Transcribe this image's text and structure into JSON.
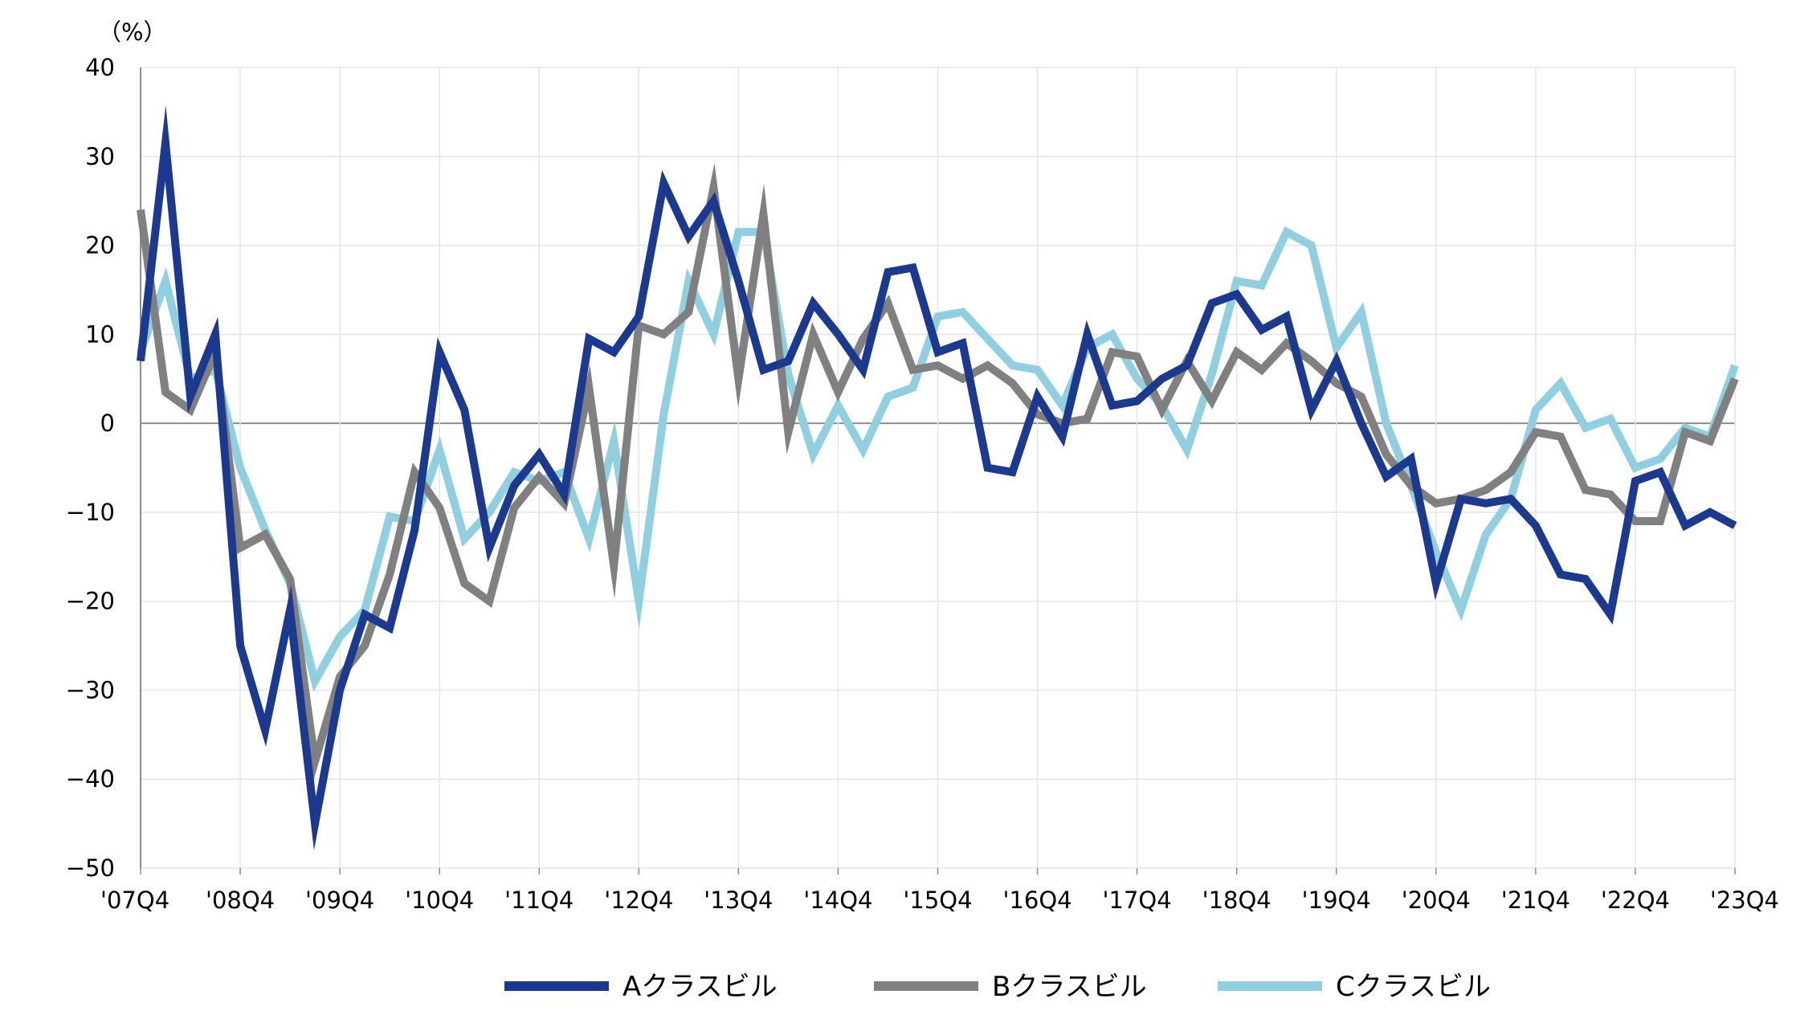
{
  "chart_data": {
    "type": "line",
    "unit_label": "（%）",
    "ylim": [
      -50,
      40
    ],
    "yticks": [
      40,
      30,
      20,
      10,
      0,
      -10,
      -20,
      -30,
      -40,
      -50
    ],
    "xticks": [
      "'07Q4",
      "'08Q4",
      "'09Q4",
      "'10Q4",
      "'11Q4",
      "'12Q4",
      "'13Q4",
      "'14Q4",
      "'15Q4",
      "'16Q4",
      "'17Q4",
      "'18Q4",
      "'19Q4",
      "'20Q4",
      "'21Q4",
      "'22Q4",
      "'23Q4"
    ],
    "grid": true,
    "legend_position": "bottom",
    "series": [
      {
        "name": "Aクラスビル",
        "color": "#1b3a8f",
        "values": [
          7,
          31.5,
          3,
          10,
          -25,
          -34.5,
          -21,
          -45,
          -30,
          -21.5,
          -23,
          -12,
          8,
          1.5,
          -14,
          -7,
          -3.5,
          -8,
          9.5,
          8,
          12,
          27,
          21,
          25,
          16,
          6,
          7,
          13.5,
          10,
          6,
          17,
          17.5,
          8,
          9,
          -5,
          -5.5,
          3,
          -1.5,
          10,
          2,
          2.5,
          5,
          6.5,
          13.5,
          14.5,
          10.5,
          12,
          1.5,
          7,
          0,
          -6,
          -4,
          -18,
          -8.5,
          -9,
          -8.5,
          -11.5,
          -17,
          -17.5,
          -21.5,
          -6.5,
          -5.5,
          -11.5,
          -10,
          -11.5
        ]
      },
      {
        "name": "Bクラスビル",
        "color": "#808080",
        "values": [
          24,
          3.5,
          1.5,
          8,
          -14,
          -12.5,
          -17.5,
          -38,
          -28.5,
          -25,
          -17,
          -5.5,
          -9.5,
          -18,
          -20,
          -9.5,
          -6,
          -9,
          4,
          -16,
          11,
          10,
          12.5,
          26.5,
          5,
          23.5,
          -1,
          10,
          3.5,
          9.5,
          13.5,
          6,
          6.5,
          5,
          6.5,
          4.5,
          1,
          0,
          0.5,
          8,
          7.5,
          1.5,
          7,
          2.5,
          8,
          6,
          9,
          7,
          4.5,
          3,
          -3.5,
          -7,
          -9,
          -8.5,
          -7.5,
          -5.5,
          -1,
          -1.5,
          -7.5,
          -8,
          -11,
          -11,
          -1,
          -2,
          5
        ]
      },
      {
        "name": "Cクラスビル",
        "color": "#8fcfe0",
        "values": [
          8,
          16,
          5,
          6,
          -5,
          -12,
          -18,
          -29,
          -24,
          -21,
          -10.5,
          -11,
          -3,
          -13,
          -10,
          -5.5,
          -6.5,
          -5.5,
          -13,
          -2,
          -20,
          1,
          16,
          10,
          21.5,
          21.5,
          5.5,
          -3.5,
          2,
          -3,
          3,
          4,
          12,
          12.5,
          9.5,
          6.5,
          6,
          2,
          8.5,
          10,
          5,
          2,
          -3,
          5.5,
          16,
          15.5,
          21.5,
          20,
          8.5,
          12.5,
          0,
          -7,
          -14.5,
          -21,
          -12.5,
          -8.5,
          1.5,
          4.5,
          -0.5,
          0.5,
          -5,
          -4,
          -0.5,
          -1.5,
          6.5
        ]
      }
    ]
  }
}
